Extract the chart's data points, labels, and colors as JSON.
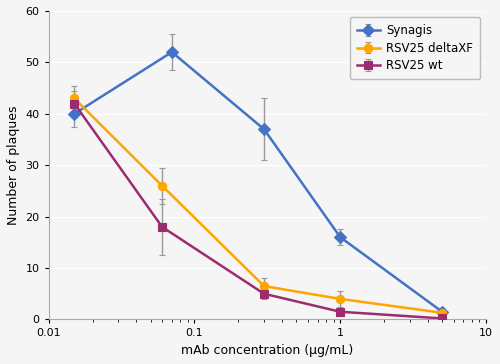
{
  "title": "",
  "xlabel": "mAb concentration (μg/mL)",
  "ylabel": "Number of plaques",
  "xlim": [
    0.01,
    10
  ],
  "ylim": [
    0,
    60
  ],
  "yticks": [
    0,
    10,
    20,
    30,
    40,
    50,
    60
  ],
  "series": [
    {
      "label": "Synagis",
      "color": "#4472C4",
      "marker": "D",
      "marker_color": "#4472C4",
      "x": [
        0.015,
        0.07,
        0.3,
        1.0,
        5.0
      ],
      "y": [
        40.0,
        52.0,
        37.0,
        16.0,
        1.5
      ],
      "yerr": [
        2.5,
        3.5,
        6.0,
        1.5,
        0.7
      ]
    },
    {
      "label": "RSV25 deltaXF",
      "color": "#FFA500",
      "marker": "o",
      "marker_color": "#FFA500",
      "x": [
        0.015,
        0.06,
        0.3,
        1.0,
        5.0
      ],
      "y": [
        43.0,
        26.0,
        6.5,
        4.0,
        1.3
      ],
      "yerr": [
        2.5,
        3.5,
        1.5,
        1.5,
        0.6
      ]
    },
    {
      "label": "RSV25 wt",
      "color": "#9B2D6F",
      "marker": "s",
      "marker_color": "#9B2D6F",
      "x": [
        0.015,
        0.06,
        0.3,
        1.0,
        5.0
      ],
      "y": [
        42.0,
        18.0,
        5.0,
        1.5,
        0.2
      ],
      "yerr": [
        2.5,
        5.5,
        1.0,
        0.6,
        0.2
      ]
    }
  ],
  "background_color": "#f5f5f5",
  "plot_bg_color": "#f5f5f5",
  "grid_color": "#ffffff",
  "legend_edge_color": "#bbbbbb",
  "errorbar_color": "#999999",
  "markersize": 6,
  "linewidth": 1.8,
  "fontsize_label": 9,
  "fontsize_tick": 8,
  "fontsize_legend": 8.5
}
